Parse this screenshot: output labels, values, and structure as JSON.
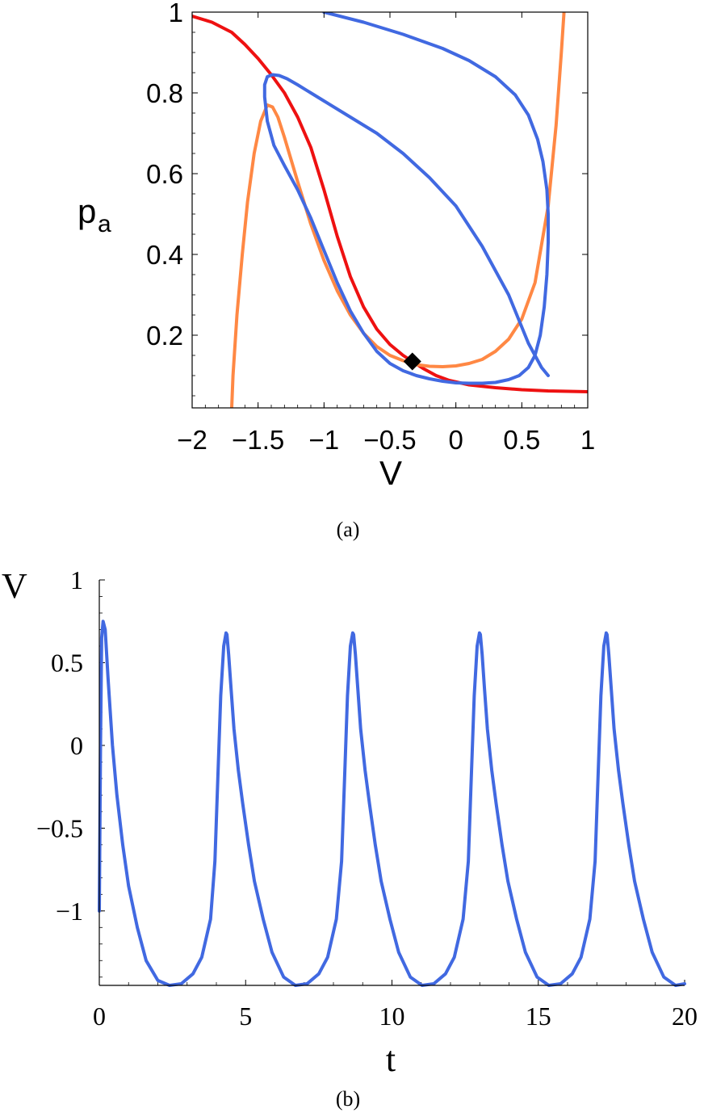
{
  "chart_data": [
    {
      "type": "line",
      "panel_label": "(a)",
      "xlabel": "V",
      "ylabel": "p",
      "ylabel_subscript": "a",
      "xlim": [
        -2,
        1
      ],
      "ylim": [
        0.02,
        1
      ],
      "xticks": [
        -2,
        -1.5,
        -1,
        -0.5,
        0,
        0.5,
        1
      ],
      "xtick_labels": [
        "−2",
        "−1.5",
        "−1",
        "−0.5",
        "0",
        "0.5",
        "1"
      ],
      "yticks": [
        0.2,
        0.4,
        0.6,
        0.8,
        1
      ],
      "ytick_labels": [
        "0.2",
        "0.4",
        "0.6",
        "0.8",
        "1"
      ],
      "colors": {
        "red": "#ee1111",
        "orange": "#ff8844",
        "blue": "#4169e1",
        "marker": "#000000"
      },
      "series": [
        {
          "color": "red",
          "x": [
            -2.0,
            -1.85,
            -1.7,
            -1.6,
            -1.5,
            -1.4,
            -1.3,
            -1.2,
            -1.1,
            -1.0,
            -0.9,
            -0.8,
            -0.7,
            -0.6,
            -0.5,
            -0.4,
            -0.33,
            -0.25,
            -0.15,
            -0.05,
            0.1,
            0.3,
            0.5,
            0.7,
            1.0
          ],
          "y": [
            0.99,
            0.975,
            0.95,
            0.92,
            0.885,
            0.845,
            0.8,
            0.74,
            0.665,
            0.56,
            0.445,
            0.345,
            0.27,
            0.215,
            0.177,
            0.15,
            0.135,
            0.118,
            0.1,
            0.088,
            0.077,
            0.07,
            0.065,
            0.062,
            0.06
          ]
        },
        {
          "color": "orange",
          "x": [
            -1.7,
            -1.69,
            -1.66,
            -1.62,
            -1.58,
            -1.53,
            -1.48,
            -1.43,
            -1.39,
            -1.35,
            -1.3,
            -1.2,
            -1.1,
            -1.0,
            -0.9,
            -0.8,
            -0.7,
            -0.6,
            -0.5,
            -0.4,
            -0.3,
            -0.2,
            -0.1,
            0.0,
            0.1,
            0.2,
            0.3,
            0.4,
            0.5,
            0.6,
            0.7,
            0.76,
            0.8,
            0.82
          ],
          "y": [
            0.02,
            0.1,
            0.25,
            0.4,
            0.53,
            0.65,
            0.73,
            0.77,
            0.765,
            0.74,
            0.69,
            0.58,
            0.475,
            0.385,
            0.31,
            0.25,
            0.205,
            0.172,
            0.15,
            0.137,
            0.127,
            0.123,
            0.122,
            0.124,
            0.13,
            0.14,
            0.16,
            0.19,
            0.24,
            0.33,
            0.52,
            0.72,
            0.9,
            1.0
          ]
        },
        {
          "color": "blue",
          "x": [
            -1.0,
            -0.7,
            -0.4,
            -0.1,
            0.1,
            0.3,
            0.45,
            0.55,
            0.62,
            0.66,
            0.69,
            0.7,
            0.7,
            0.69,
            0.67,
            0.64,
            0.6,
            0.55,
            0.48,
            0.4,
            0.3,
            0.2,
            0.1,
            0.0,
            -0.1,
            -0.2,
            -0.3,
            -0.4,
            -0.5,
            -0.6,
            -0.7,
            -0.8,
            -0.9,
            -1.0,
            -1.1,
            -1.2,
            -1.3,
            -1.38,
            -1.43,
            -1.45,
            -1.45,
            -1.43,
            -1.39,
            -1.34,
            -1.28,
            -1.2,
            -1.1,
            -1.0,
            -0.8,
            -0.6,
            -0.4,
            -0.2,
            0.0,
            0.2,
            0.4,
            0.55,
            0.65,
            0.7
          ],
          "y": [
            1.0,
            0.975,
            0.945,
            0.91,
            0.88,
            0.84,
            0.795,
            0.745,
            0.685,
            0.63,
            0.56,
            0.5,
            0.43,
            0.35,
            0.27,
            0.2,
            0.15,
            0.12,
            0.1,
            0.09,
            0.083,
            0.081,
            0.081,
            0.082,
            0.086,
            0.092,
            0.1,
            0.112,
            0.13,
            0.16,
            0.205,
            0.26,
            0.33,
            0.41,
            0.49,
            0.56,
            0.62,
            0.67,
            0.73,
            0.79,
            0.82,
            0.84,
            0.845,
            0.843,
            0.835,
            0.82,
            0.8,
            0.78,
            0.74,
            0.7,
            0.65,
            0.59,
            0.52,
            0.42,
            0.3,
            0.18,
            0.12,
            0.1
          ]
        }
      ],
      "marker": {
        "shape": "diamond",
        "x": -0.33,
        "y": 0.135
      }
    },
    {
      "type": "line",
      "panel_label": "(b)",
      "xlabel": "t",
      "ylabel": "V",
      "xlim": [
        0,
        20
      ],
      "ylim": [
        -1.45,
        1
      ],
      "xticks": [
        0,
        5,
        10,
        15,
        20
      ],
      "xtick_labels": [
        "0",
        "5",
        "10",
        "15",
        "20"
      ],
      "yticks": [
        -1,
        -0.5,
        0,
        0.5,
        1
      ],
      "ytick_labels": [
        "−1",
        "−0.5",
        "0",
        "0.5",
        "1"
      ],
      "colors": {
        "trace": "#4169e1"
      },
      "period": 4.33,
      "series": [
        {
          "color": "trace",
          "x": [
            0.0,
            0.04,
            0.08,
            0.13,
            0.2,
            0.3,
            0.45,
            0.6,
            0.8,
            1.0,
            1.3,
            1.6,
            2.0,
            2.4,
            2.8,
            3.2,
            3.5,
            3.8,
            3.95,
            4.05,
            4.15,
            4.25,
            4.33,
            4.36,
            4.42,
            4.5,
            4.6,
            4.75,
            4.9,
            5.1,
            5.3,
            5.6,
            5.9,
            6.3,
            6.7,
            7.1,
            7.5,
            7.8,
            8.1,
            8.28,
            8.38,
            8.48,
            8.58,
            8.66,
            8.69,
            8.75,
            8.83,
            8.93,
            9.08,
            9.23,
            9.43,
            9.63,
            9.93,
            10.23,
            10.63,
            11.03,
            11.43,
            11.83,
            12.13,
            12.43,
            12.61,
            12.71,
            12.81,
            12.91,
            12.99,
            13.02,
            13.08,
            13.16,
            13.26,
            13.41,
            13.56,
            13.76,
            13.96,
            14.26,
            14.56,
            14.96,
            15.36,
            15.76,
            16.16,
            16.46,
            16.76,
            16.94,
            17.04,
            17.14,
            17.24,
            17.32,
            17.35,
            17.41,
            17.49,
            17.59,
            17.74,
            17.89,
            18.09,
            18.29,
            18.59,
            18.89,
            19.29,
            19.69,
            20.0
          ],
          "y": [
            -1.0,
            0.0,
            0.65,
            0.75,
            0.7,
            0.4,
            0.0,
            -0.3,
            -0.6,
            -0.85,
            -1.1,
            -1.3,
            -1.42,
            -1.45,
            -1.44,
            -1.38,
            -1.28,
            -1.05,
            -0.7,
            -0.2,
            0.3,
            0.6,
            0.68,
            0.67,
            0.55,
            0.35,
            0.1,
            -0.15,
            -0.35,
            -0.6,
            -0.82,
            -1.05,
            -1.25,
            -1.4,
            -1.45,
            -1.44,
            -1.38,
            -1.28,
            -1.05,
            -0.7,
            -0.2,
            0.3,
            0.6,
            0.68,
            0.67,
            0.55,
            0.35,
            0.1,
            -0.15,
            -0.35,
            -0.6,
            -0.82,
            -1.05,
            -1.25,
            -1.4,
            -1.45,
            -1.44,
            -1.38,
            -1.28,
            -1.05,
            -0.7,
            -0.2,
            0.3,
            0.6,
            0.68,
            0.67,
            0.55,
            0.35,
            0.1,
            -0.15,
            -0.35,
            -0.6,
            -0.82,
            -1.05,
            -1.25,
            -1.4,
            -1.45,
            -1.44,
            -1.38,
            -1.28,
            -1.05,
            -0.7,
            -0.2,
            0.3,
            0.6,
            0.68,
            0.67,
            0.55,
            0.35,
            0.1,
            -0.15,
            -0.35,
            -0.6,
            -0.82,
            -1.05,
            -1.25,
            -1.4,
            -1.45,
            -1.44
          ]
        }
      ]
    }
  ]
}
